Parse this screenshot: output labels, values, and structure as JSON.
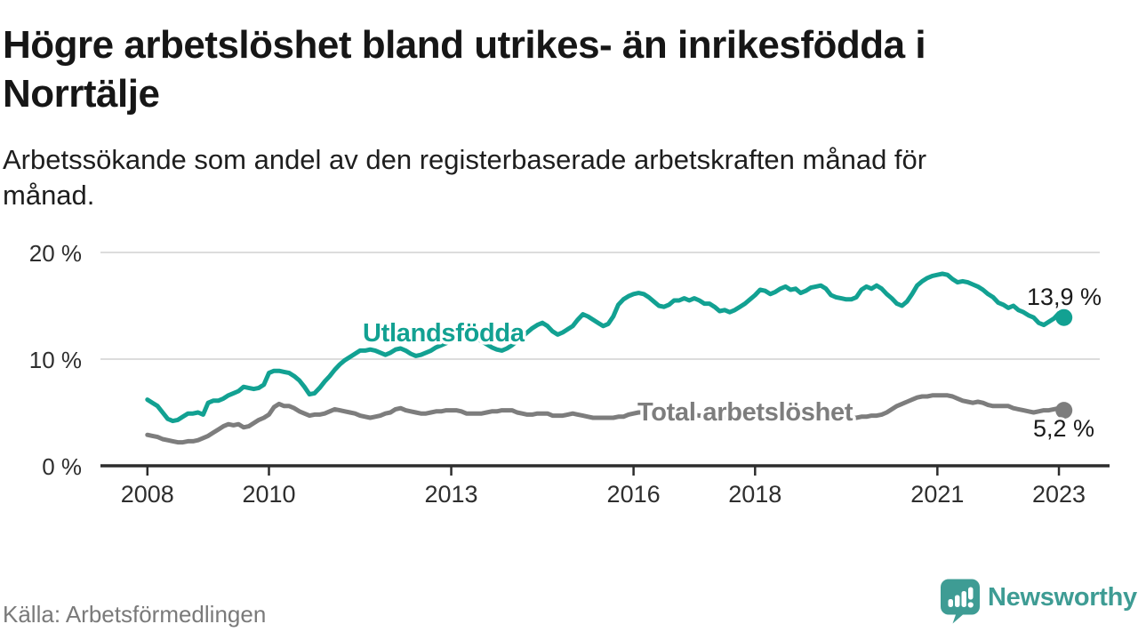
{
  "title": "Högre arbetslöshet bland utrikes- än inrikesfödda i Norrtälje",
  "title_lines": [
    "Högre arbetslöshet bland utrikes- än inrikesfödda i",
    "Norrtälje"
  ],
  "subtitle": "Arbetssökande som andel av den registerbaserade arbetskraften månad för månad.",
  "subtitle_lines": [
    "Arbetssökande som andel av den registerbaserade arbetskraften månad för",
    "månad."
  ],
  "source": "Källa: Arbetsförmedlingen",
  "brand": {
    "name": "Newsworthy",
    "color": "#3e9c94"
  },
  "colors": {
    "series_foreign_born": "#12a192",
    "series_total": "#7d7d7d",
    "axis": "#2d2d2d",
    "grid": "#dcdcdc",
    "text": "#161616",
    "source_text": "#7a7a7a"
  },
  "chart_data": {
    "type": "line",
    "unit": "%",
    "x_unit": "decimal_year_monthly",
    "x_start": 2008.0,
    "x_step": 0.083333,
    "x_end": 2023.083,
    "ylim": [
      0,
      20
    ],
    "grid": "horizontal",
    "legend_position": "inline-labels",
    "y_ticks": [
      {
        "value": 0,
        "label": "0 %"
      },
      {
        "value": 10,
        "label": "10 %"
      },
      {
        "value": 20,
        "label": "20 %"
      }
    ],
    "x_ticks": [
      {
        "value": 2008,
        "label": "2008"
      },
      {
        "value": 2010,
        "label": "2010"
      },
      {
        "value": 2013,
        "label": "2013"
      },
      {
        "value": 2016,
        "label": "2016"
      },
      {
        "value": 2018,
        "label": "2018"
      },
      {
        "value": 2021,
        "label": "2021"
      },
      {
        "value": 2023,
        "label": "2023"
      }
    ],
    "series": [
      {
        "name": "Utlandsfödda",
        "color": "#12a192",
        "end_value": 13.9,
        "end_label": "13,9 %",
        "values": [
          6.2,
          5.9,
          5.6,
          5.0,
          4.4,
          4.2,
          4.3,
          4.6,
          4.9,
          4.9,
          5.0,
          4.8,
          5.9,
          6.1,
          6.1,
          6.3,
          6.6,
          6.8,
          7.0,
          7.4,
          7.3,
          7.2,
          7.3,
          7.6,
          8.7,
          8.9,
          8.9,
          8.8,
          8.7,
          8.4,
          8.0,
          7.4,
          6.7,
          6.8,
          7.3,
          7.9,
          8.4,
          9.0,
          9.5,
          9.9,
          10.2,
          10.5,
          10.8,
          10.8,
          10.9,
          10.8,
          10.6,
          10.4,
          10.6,
          10.9,
          11.0,
          10.8,
          10.5,
          10.3,
          10.4,
          10.6,
          10.8,
          11.1,
          11.3,
          11.5,
          11.8,
          12.0,
          12.1,
          12.1,
          12.0,
          11.9,
          11.7,
          11.4,
          11.1,
          10.9,
          10.8,
          11.0,
          11.3,
          11.7,
          12.1,
          12.5,
          12.9,
          13.2,
          13.4,
          13.1,
          12.6,
          12.3,
          12.5,
          12.8,
          13.1,
          13.7,
          14.2,
          14.0,
          13.7,
          13.4,
          13.1,
          13.3,
          14.0,
          15.1,
          15.6,
          15.9,
          16.1,
          16.2,
          16.1,
          15.8,
          15.4,
          15.0,
          14.9,
          15.1,
          15.5,
          15.5,
          15.7,
          15.5,
          15.7,
          15.5,
          15.2,
          15.2,
          14.9,
          14.5,
          14.6,
          14.4,
          14.6,
          14.9,
          15.2,
          15.6,
          16.0,
          16.5,
          16.4,
          16.1,
          16.3,
          16.6,
          16.8,
          16.5,
          16.6,
          16.2,
          16.4,
          16.7,
          16.8,
          16.9,
          16.6,
          16.0,
          15.8,
          15.7,
          15.6,
          15.6,
          15.8,
          16.5,
          16.8,
          16.6,
          16.9,
          16.6,
          16.1,
          15.7,
          15.2,
          15.0,
          15.4,
          16.1,
          16.9,
          17.3,
          17.6,
          17.8,
          17.9,
          18.0,
          17.9,
          17.5,
          17.2,
          17.3,
          17.2,
          17.0,
          16.8,
          16.5,
          16.1,
          15.8,
          15.3,
          15.1,
          14.8,
          15.0,
          14.6,
          14.4,
          14.1,
          13.9,
          13.4,
          13.2,
          13.5,
          13.8,
          14.3,
          13.9
        ]
      },
      {
        "name": "Total arbetslöshet",
        "color": "#7d7d7d",
        "end_value": 5.2,
        "end_label": "5,2 %",
        "values": [
          2.9,
          2.8,
          2.7,
          2.5,
          2.4,
          2.3,
          2.2,
          2.2,
          2.3,
          2.3,
          2.4,
          2.6,
          2.8,
          3.1,
          3.4,
          3.7,
          3.9,
          3.8,
          3.9,
          3.6,
          3.7,
          4.0,
          4.3,
          4.5,
          4.8,
          5.5,
          5.8,
          5.6,
          5.6,
          5.4,
          5.1,
          4.9,
          4.7,
          4.8,
          4.8,
          4.9,
          5.1,
          5.3,
          5.2,
          5.1,
          5.0,
          4.9,
          4.7,
          4.6,
          4.5,
          4.6,
          4.7,
          4.9,
          5.0,
          5.3,
          5.4,
          5.2,
          5.1,
          5.0,
          4.9,
          4.9,
          5.0,
          5.1,
          5.1,
          5.2,
          5.2,
          5.2,
          5.1,
          4.9,
          4.9,
          4.9,
          4.9,
          5.0,
          5.1,
          5.1,
          5.2,
          5.2,
          5.2,
          5.0,
          4.9,
          4.8,
          4.8,
          4.9,
          4.9,
          4.9,
          4.7,
          4.7,
          4.7,
          4.8,
          4.9,
          4.8,
          4.7,
          4.6,
          4.5,
          4.5,
          4.5,
          4.5,
          4.5,
          4.6,
          4.6,
          4.8,
          4.9,
          5.0,
          5.0,
          4.9,
          4.9,
          4.8,
          4.8,
          4.7,
          4.7,
          4.8,
          4.8,
          4.8,
          4.8,
          4.7,
          4.7,
          4.6,
          4.5,
          4.5,
          4.5,
          4.6,
          4.6,
          4.7,
          4.7,
          4.8,
          4.8,
          4.7,
          4.7,
          4.6,
          4.5,
          4.5,
          4.4,
          4.5,
          4.5,
          4.6,
          4.6,
          4.6,
          4.6,
          4.6,
          4.6,
          4.5,
          4.5,
          4.4,
          4.5,
          4.5,
          4.5,
          4.6,
          4.6,
          4.7,
          4.7,
          4.8,
          5.0,
          5.3,
          5.6,
          5.8,
          6.0,
          6.2,
          6.4,
          6.5,
          6.5,
          6.6,
          6.6,
          6.6,
          6.6,
          6.5,
          6.3,
          6.1,
          6.0,
          5.9,
          6.0,
          5.9,
          5.7,
          5.6,
          5.6,
          5.6,
          5.6,
          5.4,
          5.3,
          5.2,
          5.1,
          5.0,
          5.1,
          5.2,
          5.2,
          5.3,
          5.4,
          5.2
        ]
      }
    ]
  }
}
